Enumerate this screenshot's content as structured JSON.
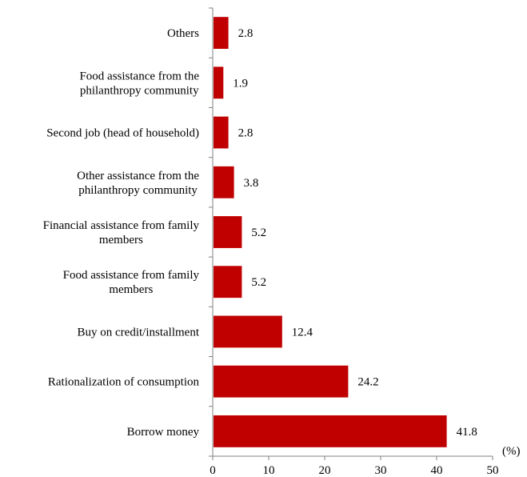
{
  "chart_data": {
    "type": "bar",
    "orientation": "horizontal",
    "categories": [
      [
        "Others"
      ],
      [
        "Food assistance from the",
        "philanthropy community"
      ],
      [
        "Second job (head of household)"
      ],
      [
        "Other assistance from the",
        "philanthropy community"
      ],
      [
        "Financial assistance from family",
        "members"
      ],
      [
        "Food assistance from family",
        "members"
      ],
      [
        "Buy on credit/installment"
      ],
      [
        "Rationalization of consumption"
      ],
      [
        "Borrow money"
      ]
    ],
    "values": [
      2.8,
      1.9,
      2.8,
      3.8,
      5.2,
      5.2,
      12.4,
      24.2,
      41.8
    ],
    "value_labels": [
      "2.8",
      "1.9",
      "2.8",
      "3.8",
      "5.2",
      "5.2",
      "12.4",
      "24.2",
      "41.8"
    ],
    "xlim": [
      0,
      50
    ],
    "xticks": [
      0,
      10,
      20,
      30,
      40,
      50
    ],
    "xtick_labels": [
      "0",
      "10",
      "20",
      "30",
      "40",
      "50"
    ],
    "x_unit": "(%)",
    "bar_color": "#c00000",
    "grid": false,
    "legend": "none"
  }
}
